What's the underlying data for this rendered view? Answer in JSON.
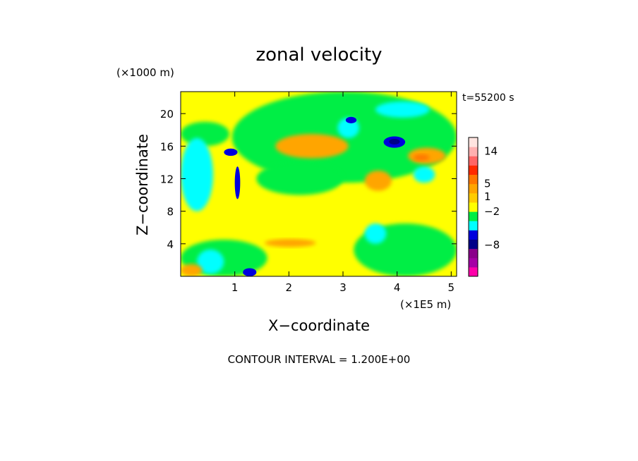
{
  "chart_data": {
    "type": "heatmap",
    "title": "zonal velocity",
    "xlabel": "X−coordinate",
    "ylabel": "Z−coordinate",
    "x_unit": "(×1E5 m)",
    "y_unit": "(×1000 m)",
    "time_label": "t=55200 s",
    "footer": "CONTOUR INTERVAL = 1.200E+00",
    "xlim": [
      0,
      5.1
    ],
    "ylim": [
      0,
      22.7
    ],
    "x_ticks": [
      "1",
      "2",
      "3",
      "4",
      "5"
    ],
    "x_tick_values": [
      1,
      2,
      3,
      4,
      5
    ],
    "y_ticks": [
      "4",
      "8",
      "12",
      "16",
      "20"
    ],
    "y_tick_values": [
      4,
      8,
      12,
      16,
      20
    ],
    "colorbar": {
      "levels": [
        {
          "color": "#ff00aa"
        },
        {
          "color": "#a600a6"
        },
        {
          "color": "#8a008a"
        },
        {
          "color": "#000088"
        },
        {
          "color": "#0000dd"
        },
        {
          "color": "#00ffff"
        },
        {
          "color": "#00ee44"
        },
        {
          "color": "#ffff00"
        },
        {
          "color": "#ffcc00"
        },
        {
          "color": "#ffa500"
        },
        {
          "color": "#ff7700"
        },
        {
          "color": "#ff2a00"
        },
        {
          "color": "#ff6666"
        },
        {
          "color": "#ffb0b0"
        },
        {
          "color": "#ffe4e0"
        }
      ],
      "labels": [
        {
          "text": "14",
          "level": 13.5
        },
        {
          "text": "5",
          "level": 10
        },
        {
          "text": "1",
          "level": 8.6
        },
        {
          "text": "−2",
          "level": 7
        },
        {
          "text": "−8",
          "level": 3.4
        }
      ]
    },
    "regions": [
      {
        "color": "#00ee44",
        "x": [
          0.95,
          5.1
        ],
        "z": [
          11.5,
          22.7
        ]
      },
      {
        "color": "#00ee44",
        "x": [
          0,
          1.6
        ],
        "z": [
          0,
          4.5
        ]
      },
      {
        "color": "#00ee44",
        "x": [
          3.2,
          5.1
        ],
        "z": [
          0,
          6.5
        ]
      },
      {
        "color": "#00ee44",
        "x": [
          0,
          0.9
        ],
        "z": [
          16,
          19
        ]
      },
      {
        "color": "#00ee44",
        "x": [
          1.4,
          3.0
        ],
        "z": [
          10,
          14
        ]
      },
      {
        "color": "#00ffff",
        "x": [
          0,
          0.6
        ],
        "z": [
          8,
          17
        ]
      },
      {
        "color": "#00ffff",
        "x": [
          0.3,
          0.8
        ],
        "z": [
          0.3,
          3.3
        ]
      },
      {
        "color": "#00ffff",
        "x": [
          3.6,
          4.6
        ],
        "z": [
          19.5,
          21.5
        ]
      },
      {
        "color": "#00ffff",
        "x": [
          3.4,
          3.8
        ],
        "z": [
          4,
          6.5
        ]
      },
      {
        "color": "#00ffff",
        "x": [
          4.3,
          4.7
        ],
        "z": [
          11.5,
          13.5
        ]
      },
      {
        "color": "#00ffff",
        "x": [
          2.9,
          3.3
        ],
        "z": [
          17,
          19.5
        ]
      },
      {
        "color": "#ffa500",
        "x": [
          1.75,
          3.1
        ],
        "z": [
          14.5,
          17.5
        ]
      },
      {
        "color": "#ffa500",
        "x": [
          1.55,
          2.5
        ],
        "z": [
          3.6,
          4.6
        ]
      },
      {
        "color": "#ffa500",
        "x": [
          3.4,
          3.9
        ],
        "z": [
          10.5,
          13
        ]
      },
      {
        "color": "#ffa500",
        "x": [
          4.2,
          4.9
        ],
        "z": [
          13.8,
          15.8
        ]
      },
      {
        "color": "#ffa500",
        "x": [
          0,
          0.4
        ],
        "z": [
          0,
          1.5
        ]
      },
      {
        "color": "#ff7700",
        "x": [
          4.3,
          4.6
        ],
        "z": [
          14.2,
          15
        ]
      },
      {
        "color": "#0000dd",
        "x": [
          3.75,
          4.15
        ],
        "z": [
          15.8,
          17.2
        ]
      },
      {
        "color": "#0000dd",
        "x": [
          0.8,
          1.05
        ],
        "z": [
          14.8,
          15.7
        ]
      },
      {
        "color": "#0000dd",
        "x": [
          3.05,
          3.25
        ],
        "z": [
          18.8,
          19.6
        ]
      },
      {
        "color": "#0000dd",
        "x": [
          1.15,
          1.4
        ],
        "z": [
          0,
          1.0
        ]
      },
      {
        "color": "#0000dd",
        "x": [
          1.0,
          1.1
        ],
        "z": [
          9.5,
          13.5
        ]
      },
      {
        "color": "#000088",
        "x": [
          3.85,
          4.05
        ],
        "z": [
          16.2,
          16.9
        ]
      }
    ]
  }
}
